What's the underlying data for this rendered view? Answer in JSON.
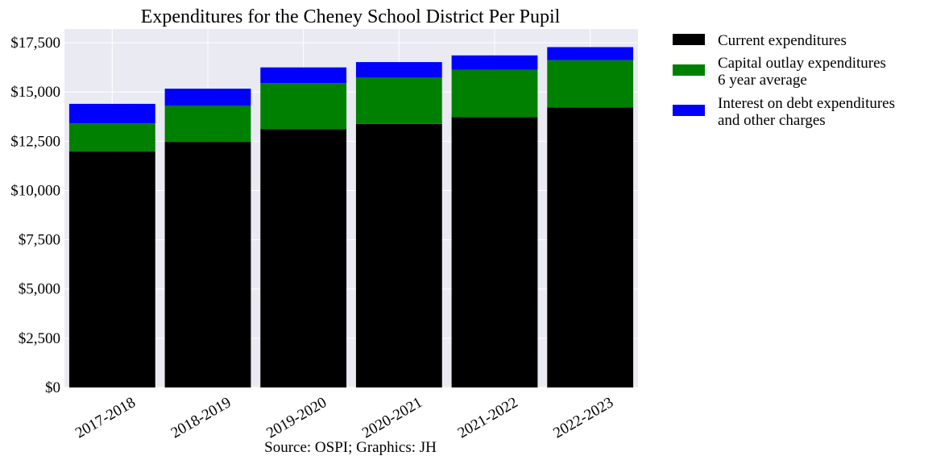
{
  "chart_data": {
    "type": "bar",
    "stacked": true,
    "title": "Expenditures for the Cheney School District Per Pupil",
    "xlabel": "",
    "ylabel": "",
    "categories": [
      "2017-2018",
      "2018-2019",
      "2019-2020",
      "2020-2021",
      "2021-2022",
      "2022-2023"
    ],
    "series": [
      {
        "name": "Current expenditures",
        "color": "#000000",
        "values": [
          11980,
          12470,
          13120,
          13380,
          13730,
          14220
        ]
      },
      {
        "name": "Capital outlay expenditures 6 year average",
        "color": "#008000",
        "values": [
          1430,
          1830,
          2330,
          2350,
          2400,
          2400
        ]
      },
      {
        "name": "Interest on debt expenditures and other charges",
        "color": "#0000ff",
        "values": [
          990,
          870,
          800,
          790,
          730,
          660
        ]
      }
    ],
    "ylim": [
      0,
      18200
    ],
    "yticks": [
      0,
      2500,
      5000,
      7500,
      10000,
      12500,
      15000,
      17500
    ],
    "ytick_labels": [
      "$0",
      "$2,500",
      "$5,000",
      "$7,500",
      "$10,000",
      "$12,500",
      "$15,000",
      "$17,500"
    ],
    "grid": true,
    "legend_position": "outside-right",
    "legend_lines": [
      [
        "Current expenditures"
      ],
      [
        "Capital outlay expenditures",
        "6 year average"
      ],
      [
        "Interest on debt expenditures",
        "and other charges"
      ]
    ],
    "caption": "Source: OSPI; Graphics: JH",
    "colors": {
      "plot_background": "#eaeaf2",
      "grid": "#ffffff"
    }
  }
}
